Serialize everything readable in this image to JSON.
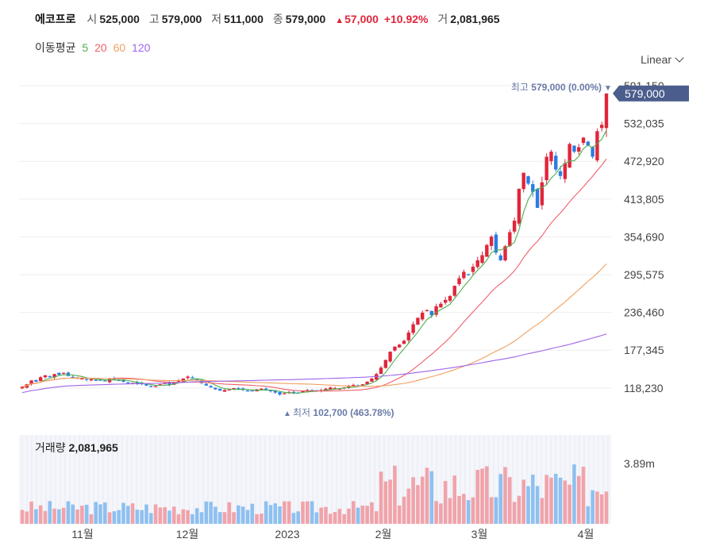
{
  "header": {
    "name": "에코프로",
    "open_label": "시",
    "open": "525,000",
    "high_label": "고",
    "high": "579,000",
    "low_label": "저",
    "low": "511,000",
    "close_label": "종",
    "close": "579,000",
    "change_arrow": "▲",
    "change": "57,000",
    "change_pct": "+10.92%",
    "volume_label": "거",
    "volume": "2,081,965"
  },
  "ma_legend": {
    "title": "이동평균",
    "items": [
      {
        "label": "5",
        "color": "#4caf50"
      },
      {
        "label": "20",
        "color": "#f0606a"
      },
      {
        "label": "60",
        "color": "#f0a060"
      },
      {
        "label": "120",
        "color": "#a064e8"
      }
    ]
  },
  "scale_selector": {
    "label": "Linear"
  },
  "volume_panel": {
    "title": "거래량",
    "value": "2,081,965",
    "axis_label": "3.89m"
  },
  "colors": {
    "up": "#e0263b",
    "down": "#2b7de0",
    "vol_up": "#f1a3aa",
    "vol_down": "#8ec0f0",
    "grid": "#eeeeee",
    "tag_bg": "#4a5d8c",
    "annot": "#6a7aa8"
  },
  "chart_data": {
    "type": "candlestick",
    "title": "",
    "y_axis": {
      "ticks": [
        "591,150",
        "532,035",
        "472,920",
        "413,805",
        "354,690",
        "295,575",
        "236,460",
        "177,345",
        "118,230"
      ],
      "range": [
        100000,
        600000
      ]
    },
    "x_axis": {
      "ticks": [
        "11월",
        "12월",
        "2023",
        "2월",
        "3월",
        "4월"
      ]
    },
    "last_price_tag": "579,000",
    "high_annotation": {
      "label": "최고",
      "value": "579,000",
      "pct": "(0.00%)",
      "marker": "▼"
    },
    "low_annotation": {
      "label": "최저",
      "value": "102,700",
      "pct": "(463.78%)",
      "marker": "▲"
    },
    "volume_max": 3890000,
    "series_closes": [
      120000,
      124000,
      130000,
      128000,
      135000,
      138000,
      136000,
      140000,
      139000,
      142000,
      137000,
      135000,
      134000,
      133000,
      131000,
      132000,
      130000,
      131000,
      129000,
      133000,
      131000,
      130000,
      128000,
      127000,
      126000,
      125000,
      124000,
      122000,
      120000,
      121000,
      124000,
      126000,
      123000,
      127000,
      130000,
      133000,
      136000,
      134000,
      130000,
      126000,
      122000,
      119000,
      116000,
      114000,
      115000,
      117000,
      118000,
      116000,
      115000,
      113000,
      114000,
      116000,
      117000,
      115000,
      113000,
      111000,
      108000,
      110000,
      112000,
      110000,
      111000,
      113000,
      115000,
      114000,
      113000,
      115000,
      117000,
      119000,
      118000,
      117000,
      119000,
      121000,
      123000,
      122000,
      124000,
      128000,
      133000,
      140000,
      150000,
      162000,
      175000,
      183000,
      186000,
      192000,
      205000,
      218000,
      228000,
      236000,
      240000,
      232000,
      246000,
      250000,
      256000,
      262000,
      278000,
      290000,
      300000,
      296000,
      308000,
      318000,
      326000,
      342000,
      355000,
      330000,
      318000,
      340000,
      362000,
      380000,
      430000,
      455000,
      438000,
      425000,
      400000,
      440000,
      480000,
      488000,
      460000,
      450000,
      470000,
      500000,
      488000,
      495000,
      510000,
      498000,
      480000,
      520000,
      530000,
      579000
    ]
  }
}
